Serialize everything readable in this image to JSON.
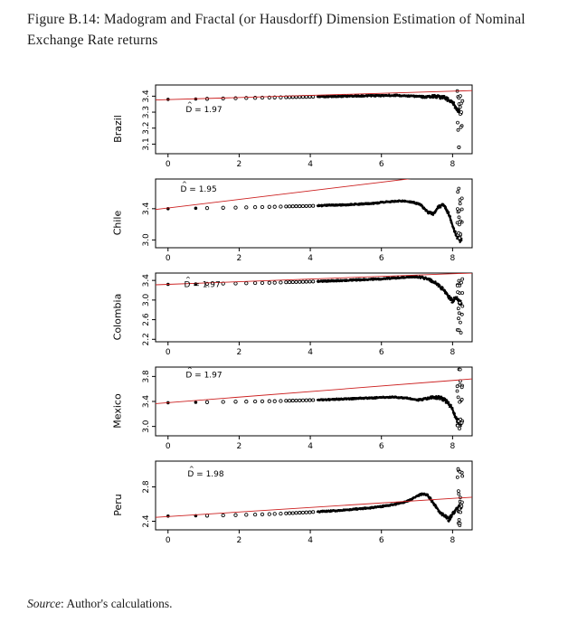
{
  "page": {
    "caption": "Figure B.14: Madogram and Fractal (or Hausdorff) Dimension Estimation of Nominal Exchange Rate returns",
    "source_italic": "Source",
    "source_text": ": Author's calculations."
  },
  "chart_data": {
    "type": "scatter",
    "title": "Madogram and Fractal (or Hausdorff) Dimension Estimation of Nominal Exchange Rate returns",
    "xlabel": "",
    "ylabel_per_panel": "country name",
    "x_ticks": [
      0,
      2,
      4,
      6,
      8
    ],
    "x_range": [
      -0.35,
      8.55
    ],
    "hat": "^",
    "grid": false,
    "colors": {
      "fit_line": "#cc2020",
      "points": "#000000"
    },
    "lead_x": [
      0,
      0.78
    ],
    "sparse_x": [
      1.1,
      1.55,
      1.9,
      2.2,
      2.45,
      2.65,
      2.85,
      3.0,
      3.17
    ],
    "panels": [
      {
        "country": "Brazil",
        "d_label": "D = 1.97",
        "d_value": 1.97,
        "d_label_pos": [
          0.5,
          3.3
        ],
        "ylim": [
          3.04,
          3.47
        ],
        "y_ticks": [
          3.1,
          3.2,
          3.3,
          3.4
        ],
        "y_tick_labels": [
          "3.1",
          "3.2",
          "3.3",
          "3.4"
        ],
        "curve": [
          [
            0,
            3.38
          ],
          [
            1,
            3.383
          ],
          [
            2,
            3.388
          ],
          [
            3,
            3.392
          ],
          [
            4,
            3.396
          ],
          [
            5,
            3.4
          ],
          [
            5.8,
            3.403
          ],
          [
            6.4,
            3.405
          ],
          [
            6.9,
            3.4
          ],
          [
            7.2,
            3.395
          ],
          [
            7.5,
            3.4
          ],
          [
            7.8,
            3.39
          ],
          [
            8.0,
            3.36
          ],
          [
            8.1,
            3.33
          ],
          [
            8.2,
            3.3
          ],
          [
            8.3,
            3.29
          ]
        ],
        "fit_line": [
          [
            -0.35,
            3.376
          ],
          [
            8.55,
            3.435
          ]
        ],
        "tail": {
          "xc": 8.2,
          "ymin": 3.18,
          "ymax": 3.44,
          "n": 14
        },
        "outliers": [
          [
            8.18,
            3.08
          ]
        ]
      },
      {
        "country": "Chile",
        "d_label": "D = 1.95",
        "d_value": 1.95,
        "d_label_pos": [
          0.35,
          3.62
        ],
        "ylim": [
          2.9,
          3.78
        ],
        "y_ticks": [
          3.0,
          3.4
        ],
        "y_tick_labels": [
          "3.0",
          "3.4"
        ],
        "curve": [
          [
            0,
            3.4
          ],
          [
            1,
            3.408
          ],
          [
            2,
            3.415
          ],
          [
            3,
            3.425
          ],
          [
            4,
            3.435
          ],
          [
            5,
            3.45
          ],
          [
            5.7,
            3.465
          ],
          [
            6.2,
            3.49
          ],
          [
            6.6,
            3.5
          ],
          [
            6.9,
            3.48
          ],
          [
            7.1,
            3.45
          ],
          [
            7.3,
            3.36
          ],
          [
            7.45,
            3.33
          ],
          [
            7.6,
            3.42
          ],
          [
            7.75,
            3.46
          ],
          [
            7.9,
            3.33
          ],
          [
            8.0,
            3.18
          ],
          [
            8.1,
            3.06
          ],
          [
            8.2,
            3.0
          ],
          [
            8.3,
            2.98
          ]
        ],
        "fit_line": [
          [
            -0.35,
            3.39
          ],
          [
            8.55,
            3.88
          ]
        ],
        "tail": {
          "xc": 8.2,
          "ymin": 2.95,
          "ymax": 3.72,
          "n": 20
        },
        "outliers": []
      },
      {
        "country": "Colombia",
        "d_label": "D = 1.97",
        "d_value": 1.97,
        "d_label_pos": [
          0.45,
          3.26
        ],
        "ylim": [
          2.15,
          3.55
        ],
        "y_ticks": [
          2.2,
          2.6,
          3.0,
          3.4
        ],
        "y_tick_labels": [
          "2.2",
          "2.6",
          "3.0",
          "3.4"
        ],
        "curve": [
          [
            0,
            3.32
          ],
          [
            1,
            3.33
          ],
          [
            2,
            3.34
          ],
          [
            3,
            3.355
          ],
          [
            4,
            3.375
          ],
          [
            5,
            3.4
          ],
          [
            5.8,
            3.425
          ],
          [
            6.5,
            3.455
          ],
          [
            6.9,
            3.475
          ],
          [
            7.15,
            3.46
          ],
          [
            7.35,
            3.42
          ],
          [
            7.55,
            3.34
          ],
          [
            7.75,
            3.2
          ],
          [
            7.9,
            3.06
          ],
          [
            8.0,
            2.98
          ],
          [
            8.1,
            3.04
          ],
          [
            8.2,
            2.95
          ],
          [
            8.3,
            2.9
          ]
        ],
        "fit_line": [
          [
            -0.35,
            3.31
          ],
          [
            8.55,
            3.55
          ]
        ],
        "tail": {
          "xc": 8.2,
          "ymin": 2.2,
          "ymax": 3.45,
          "n": 20
        },
        "outliers": []
      },
      {
        "country": "Mexico",
        "d_label": "D = 1.97",
        "d_value": 1.97,
        "d_label_pos": [
          0.5,
          3.78
        ],
        "ylim": [
          2.85,
          3.95
        ],
        "y_ticks": [
          3.0,
          3.4,
          3.8
        ],
        "y_tick_labels": [
          "3.0",
          "3.4",
          "3.8"
        ],
        "curve": [
          [
            0,
            3.38
          ],
          [
            1,
            3.388
          ],
          [
            2,
            3.396
          ],
          [
            3,
            3.405
          ],
          [
            4,
            3.42
          ],
          [
            5,
            3.44
          ],
          [
            5.8,
            3.458
          ],
          [
            6.3,
            3.47
          ],
          [
            6.7,
            3.455
          ],
          [
            7.0,
            3.42
          ],
          [
            7.2,
            3.44
          ],
          [
            7.45,
            3.465
          ],
          [
            7.65,
            3.46
          ],
          [
            7.85,
            3.395
          ],
          [
            8.0,
            3.28
          ],
          [
            8.1,
            3.12
          ],
          [
            8.2,
            3.05
          ],
          [
            8.3,
            3.03
          ]
        ],
        "fit_line": [
          [
            -0.35,
            3.365
          ],
          [
            8.55,
            3.76
          ]
        ],
        "tail": {
          "xc": 8.2,
          "ymin": 2.95,
          "ymax": 3.92,
          "n": 20
        },
        "outliers": []
      },
      {
        "country": "Peru",
        "d_label": "D = 1.98",
        "d_value": 1.98,
        "d_label_pos": [
          0.55,
          2.92
        ],
        "ylim": [
          2.3,
          3.1
        ],
        "y_ticks": [
          2.4,
          2.8
        ],
        "y_tick_labels": [
          "2.4",
          "2.8"
        ],
        "curve": [
          [
            0,
            2.46
          ],
          [
            1,
            2.465
          ],
          [
            2,
            2.472
          ],
          [
            3,
            2.485
          ],
          [
            4,
            2.505
          ],
          [
            5,
            2.53
          ],
          [
            5.8,
            2.56
          ],
          [
            6.3,
            2.59
          ],
          [
            6.7,
            2.625
          ],
          [
            6.95,
            2.68
          ],
          [
            7.15,
            2.72
          ],
          [
            7.3,
            2.7
          ],
          [
            7.45,
            2.62
          ],
          [
            7.6,
            2.53
          ],
          [
            7.75,
            2.465
          ],
          [
            7.9,
            2.42
          ],
          [
            8.0,
            2.48
          ],
          [
            8.1,
            2.545
          ],
          [
            8.2,
            2.58
          ],
          [
            8.3,
            2.56
          ]
        ],
        "fit_line": [
          [
            -0.35,
            2.445
          ],
          [
            8.55,
            2.68
          ]
        ],
        "tail": {
          "xc": 8.2,
          "ymin": 2.35,
          "ymax": 3.05,
          "n": 20
        },
        "outliers": []
      }
    ]
  }
}
